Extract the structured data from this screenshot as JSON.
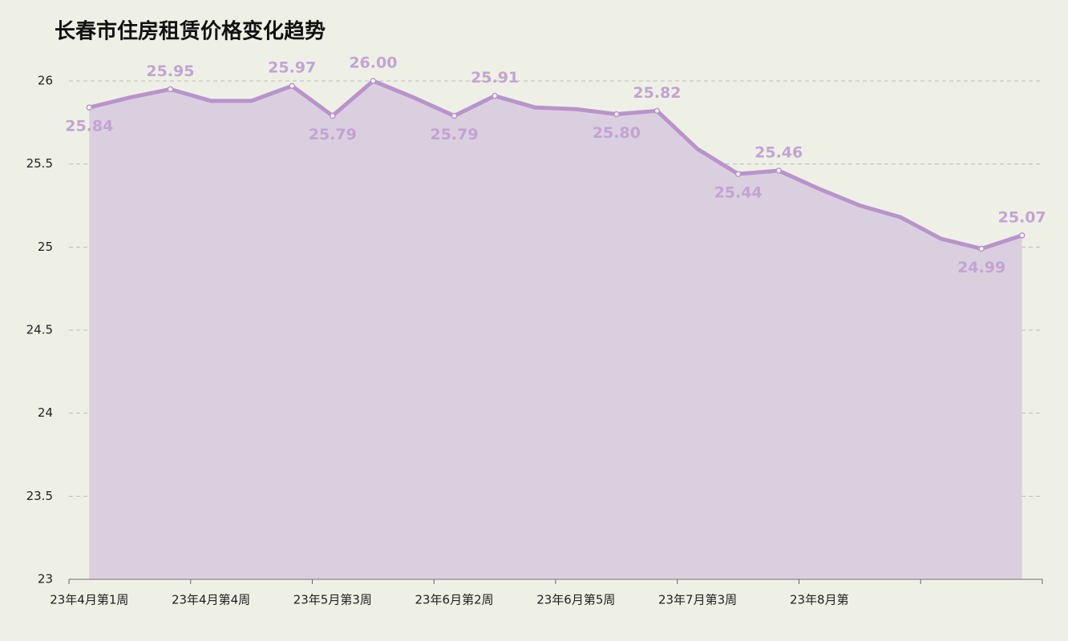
{
  "chart_data": {
    "type": "area",
    "title": "长春市住房租赁价格变化趋势",
    "categories": [
      "23年4月第1周",
      null,
      null,
      "23年4月第4周",
      null,
      null,
      "23年5月第3周",
      null,
      null,
      "23年6月第2周",
      null,
      null,
      "23年6月第5周",
      null,
      null,
      "23年7月第3周",
      null,
      null,
      "23年8月第",
      null,
      null,
      null,
      null,
      null
    ],
    "values": [
      25.84,
      25.9,
      25.95,
      25.88,
      25.88,
      25.97,
      25.79,
      26.0,
      25.9,
      25.79,
      25.91,
      25.84,
      25.83,
      25.8,
      25.82,
      25.59,
      25.44,
      25.46,
      25.35,
      25.25,
      25.18,
      25.05,
      24.99,
      25.07
    ],
    "value_labels": [
      "25.84",
      null,
      "25.95",
      null,
      null,
      "25.97",
      "25.79",
      "26.00",
      null,
      "25.79",
      "25.91",
      null,
      null,
      "25.80",
      "25.82",
      null,
      "25.44",
      "25.46",
      null,
      null,
      null,
      null,
      "24.99",
      "25.07"
    ],
    "color": "#b993cc",
    "fill_color": "#dacfdf",
    "ylim": [
      23,
      26
    ],
    "yticks": [
      23,
      23.5,
      24,
      24.5,
      25,
      25.5,
      26
    ],
    "grid": true
  }
}
